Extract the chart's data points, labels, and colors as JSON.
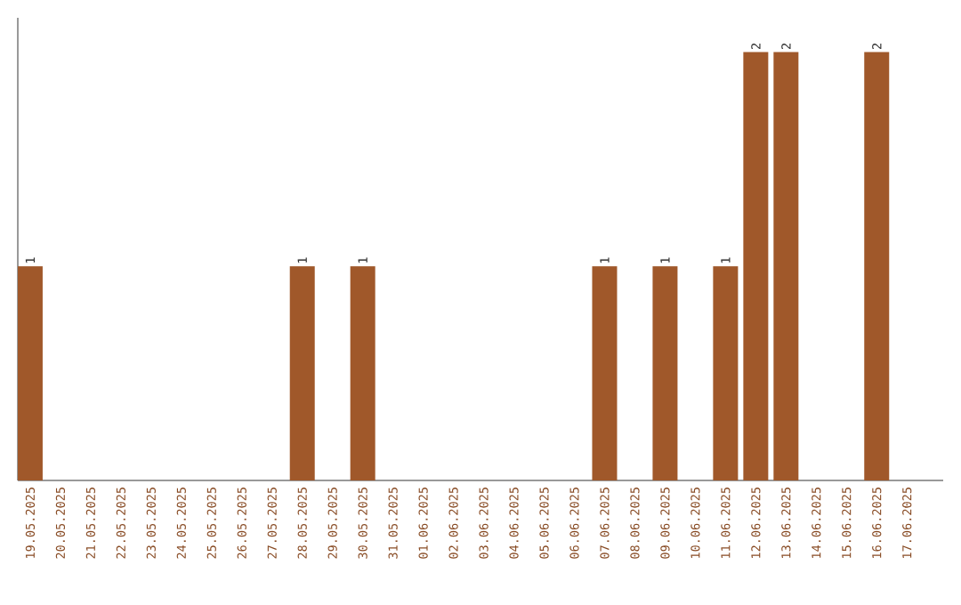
{
  "chart_data": {
    "type": "bar",
    "categories": [
      "19.05.2025",
      "20.05.2025",
      "21.05.2025",
      "22.05.2025",
      "23.05.2025",
      "24.05.2025",
      "25.05.2025",
      "26.05.2025",
      "27.05.2025",
      "28.05.2025",
      "29.05.2025",
      "30.05.2025",
      "31.05.2025",
      "01.06.2025",
      "02.06.2025",
      "03.06.2025",
      "04.06.2025",
      "05.06.2025",
      "06.06.2025",
      "07.06.2025",
      "08.06.2025",
      "09.06.2025",
      "10.06.2025",
      "11.06.2025",
      "12.06.2025",
      "13.06.2025",
      "14.06.2025",
      "15.06.2025",
      "16.06.2025",
      "17.06.2025"
    ],
    "values": [
      1,
      0,
      0,
      0,
      0,
      0,
      0,
      0,
      0,
      1,
      0,
      1,
      0,
      0,
      0,
      0,
      0,
      0,
      0,
      1,
      0,
      1,
      0,
      1,
      2,
      2,
      0,
      0,
      2,
      0
    ],
    "value_labels": [
      "1",
      null,
      null,
      null,
      null,
      null,
      null,
      null,
      null,
      "1",
      null,
      "1",
      null,
      null,
      null,
      null,
      null,
      null,
      null,
      "1",
      null,
      "1",
      null,
      "1",
      "2",
      "2",
      null,
      null,
      "2",
      null
    ],
    "color": "#a0582a"
  }
}
